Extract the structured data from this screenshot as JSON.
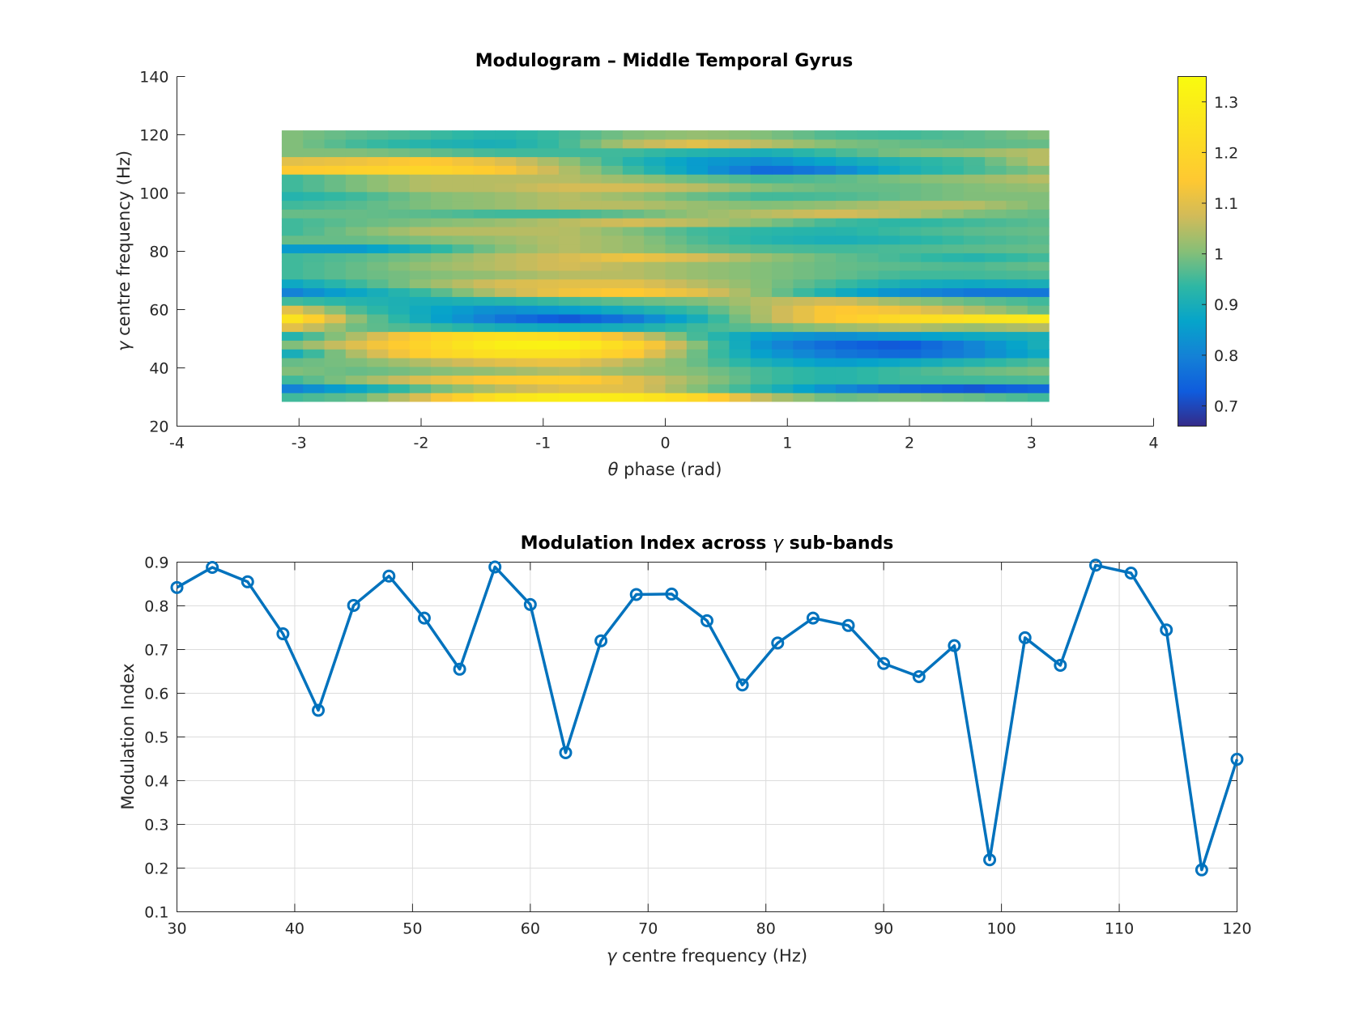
{
  "chart_data": [
    {
      "type": "heatmap",
      "title": "Modulogram – Middle Temporal Gyrus",
      "xlabel_symbol": "θ",
      "xlabel": "phase (rad)",
      "ylabel_symbol": "γ",
      "ylabel": "centre frequency (Hz)",
      "xlim": [
        -4,
        4
      ],
      "ylim": [
        20,
        140
      ],
      "x_ticks": [
        -4,
        -3,
        -2,
        -1,
        0,
        1,
        2,
        3,
        4
      ],
      "y_ticks": [
        20,
        40,
        60,
        80,
        100,
        120,
        140
      ],
      "x_extent": [
        -3.1416,
        3.1416
      ],
      "y_extent": [
        28.5,
        121.5
      ],
      "colormap": "parula",
      "clim": [
        0.66,
        1.35
      ],
      "colorbar_ticks": [
        0.7,
        0.8,
        0.9,
        1,
        1.1,
        1.2,
        1.3
      ],
      "n_cols": 36,
      "rows_bottom_to_top": [
        {
          "f": 30,
          "anchors": [
            0.95,
            0.98,
            1.1,
            1.25,
            1.3,
            1.28,
            1.2,
            1.05,
            0.98,
            1.0,
            0.98,
            0.95
          ]
        },
        {
          "f": 33,
          "anchors": [
            0.8,
            0.88,
            0.98,
            1.05,
            1.1,
            1.1,
            1.0,
            0.92,
            0.82,
            0.75,
            0.72,
            0.75
          ]
        },
        {
          "f": 36,
          "anchors": [
            0.95,
            1.02,
            1.1,
            1.15,
            1.18,
            1.1,
            1.02,
            0.95,
            0.92,
            0.95,
            0.95,
            0.96
          ]
        },
        {
          "f": 39,
          "anchors": [
            1.0,
            0.98,
            1.0,
            1.02,
            1.05,
            1.02,
            1.0,
            0.95,
            0.92,
            0.95,
            0.98,
            1.0
          ]
        },
        {
          "f": 42,
          "anchors": [
            0.98,
            1.0,
            1.05,
            1.1,
            1.12,
            1.05,
            0.98,
            0.9,
            0.85,
            0.88,
            0.92,
            0.96
          ]
        },
        {
          "f": 45,
          "anchors": [
            0.9,
            1.05,
            1.18,
            1.25,
            1.25,
            1.15,
            0.98,
            0.85,
            0.78,
            0.75,
            0.8,
            0.88
          ]
        },
        {
          "f": 48,
          "anchors": [
            1.0,
            1.1,
            1.2,
            1.3,
            1.32,
            1.2,
            1.0,
            0.82,
            0.75,
            0.72,
            0.8,
            0.9
          ]
        },
        {
          "f": 51,
          "anchors": [
            0.92,
            1.05,
            1.18,
            1.25,
            1.22,
            1.1,
            0.95,
            0.85,
            0.82,
            0.85,
            0.88,
            0.9
          ]
        },
        {
          "f": 54,
          "anchors": [
            1.1,
            0.98,
            0.95,
            0.9,
            0.88,
            0.9,
            0.95,
            0.98,
            1.02,
            1.05,
            1.02,
            1.05
          ]
        },
        {
          "f": 57,
          "anchors": [
            1.25,
            1.0,
            0.88,
            0.78,
            0.72,
            0.78,
            0.9,
            1.05,
            1.15,
            1.22,
            1.25,
            1.28
          ]
        },
        {
          "f": 60,
          "anchors": [
            1.1,
            0.95,
            0.88,
            0.82,
            0.85,
            0.9,
            0.95,
            1.05,
            1.15,
            1.12,
            1.05,
            0.98
          ]
        },
        {
          "f": 63,
          "anchors": [
            0.95,
            0.92,
            0.9,
            0.92,
            0.95,
            0.98,
            1.0,
            1.05,
            1.08,
            1.02,
            0.98,
            0.95
          ]
        },
        {
          "f": 66,
          "anchors": [
            0.8,
            0.88,
            0.95,
            1.05,
            1.12,
            1.15,
            1.1,
            1.0,
            0.9,
            0.82,
            0.78,
            0.78
          ]
        },
        {
          "f": 69,
          "anchors": [
            0.88,
            0.95,
            1.02,
            1.08,
            1.1,
            1.1,
            1.05,
            1.0,
            0.95,
            0.9,
            0.88,
            0.9
          ]
        },
        {
          "f": 72,
          "anchors": [
            0.95,
            0.98,
            1.0,
            1.02,
            1.05,
            1.05,
            1.02,
            1.0,
            0.98,
            0.95,
            0.95,
            0.96
          ]
        },
        {
          "f": 75,
          "anchors": [
            0.95,
            0.98,
            1.02,
            1.05,
            1.08,
            1.05,
            1.02,
            1.0,
            0.98,
            0.97,
            0.96,
            0.98
          ]
        },
        {
          "f": 78,
          "anchors": [
            0.95,
            0.97,
            1.0,
            1.05,
            1.08,
            1.12,
            1.08,
            1.02,
            0.98,
            0.95,
            0.92,
            0.95
          ]
        },
        {
          "f": 81,
          "anchors": [
            0.85,
            0.85,
            0.92,
            1.0,
            1.05,
            1.02,
            0.98,
            0.96,
            0.95,
            0.96,
            0.97,
            0.98
          ]
        },
        {
          "f": 84,
          "anchors": [
            0.98,
            0.98,
            1.0,
            1.02,
            1.05,
            1.02,
            0.96,
            0.92,
            0.9,
            0.92,
            0.95,
            0.97
          ]
        },
        {
          "f": 87,
          "anchors": [
            0.95,
            1.0,
            1.05,
            1.05,
            1.05,
            1.0,
            0.95,
            0.93,
            0.92,
            0.95,
            0.97,
            0.98
          ]
        },
        {
          "f": 90,
          "anchors": [
            0.95,
            0.98,
            1.0,
            1.02,
            1.05,
            1.08,
            1.05,
            1.0,
            0.95,
            0.93,
            0.95,
            0.97
          ]
        },
        {
          "f": 93,
          "anchors": [
            0.98,
            0.98,
            0.97,
            0.95,
            0.95,
            0.98,
            1.02,
            1.05,
            1.08,
            1.05,
            1.0,
            0.98
          ]
        },
        {
          "f": 96,
          "anchors": [
            0.95,
            0.97,
            1.0,
            1.02,
            1.05,
            1.05,
            1.02,
            1.0,
            1.02,
            1.05,
            1.05,
            1.0
          ]
        },
        {
          "f": 99,
          "anchors": [
            0.92,
            0.95,
            1.0,
            1.02,
            1.05,
            1.02,
            0.98,
            0.95,
            0.96,
            0.98,
            1.0,
            1.0
          ]
        },
        {
          "f": 102,
          "anchors": [
            0.95,
            1.0,
            1.05,
            1.05,
            1.08,
            1.08,
            1.05,
            1.0,
            0.98,
            0.98,
            1.0,
            1.02
          ]
        },
        {
          "f": 105,
          "anchors": [
            0.95,
            1.0,
            1.05,
            1.05,
            1.05,
            1.02,
            0.98,
            0.95,
            0.97,
            1.0,
            1.02,
            1.05
          ]
        },
        {
          "f": 108,
          "anchors": [
            1.15,
            1.18,
            1.2,
            1.15,
            1.05,
            0.95,
            0.85,
            0.75,
            0.8,
            0.9,
            0.95,
            1.0
          ]
        },
        {
          "f": 111,
          "anchors": [
            1.1,
            1.12,
            1.15,
            1.1,
            1.02,
            0.92,
            0.85,
            0.82,
            0.88,
            0.92,
            0.95,
            1.05
          ]
        },
        {
          "f": 114,
          "anchors": [
            1.0,
            1.0,
            0.98,
            0.95,
            0.95,
            0.95,
            0.92,
            0.9,
            0.95,
            1.0,
            1.02,
            1.05
          ]
        },
        {
          "f": 117,
          "anchors": [
            1.0,
            0.95,
            0.92,
            0.9,
            0.95,
            1.05,
            1.1,
            1.05,
            1.0,
            0.98,
            0.97,
            0.98
          ]
        },
        {
          "f": 120,
          "anchors": [
            1.0,
            0.97,
            0.95,
            0.92,
            0.95,
            1.0,
            1.02,
            1.0,
            0.96,
            0.95,
            0.97,
            1.0
          ]
        }
      ]
    },
    {
      "type": "line",
      "title": "Modulation Index across",
      "title_symbol": "γ",
      "title_suffix": "sub-bands",
      "xlabel_symbol": "γ",
      "xlabel": "centre frequency (Hz)",
      "ylabel": "Modulation Index",
      "xlim": [
        30,
        120
      ],
      "ylim": [
        0.1,
        0.9
      ],
      "x_ticks": [
        30,
        40,
        50,
        60,
        70,
        80,
        90,
        100,
        110,
        120
      ],
      "y_ticks": [
        0.1,
        0.2,
        0.3,
        0.4,
        0.5,
        0.6,
        0.7,
        0.8,
        0.9
      ],
      "grid": true,
      "marker": "circle",
      "color": "#0072BD",
      "x": [
        30,
        33,
        36,
        39,
        42,
        45,
        48,
        51,
        54,
        57,
        60,
        63,
        66,
        69,
        72,
        75,
        78,
        81,
        84,
        87,
        90,
        93,
        96,
        99,
        102,
        105,
        108,
        111,
        114,
        117,
        120
      ],
      "y": [
        0.842,
        0.888,
        0.855,
        0.736,
        0.561,
        0.801,
        0.868,
        0.772,
        0.655,
        0.889,
        0.803,
        0.464,
        0.72,
        0.826,
        0.827,
        0.766,
        0.619,
        0.715,
        0.772,
        0.755,
        0.668,
        0.638,
        0.709,
        0.219,
        0.727,
        0.664,
        0.893,
        0.875,
        0.745,
        0.196,
        0.449
      ]
    }
  ]
}
